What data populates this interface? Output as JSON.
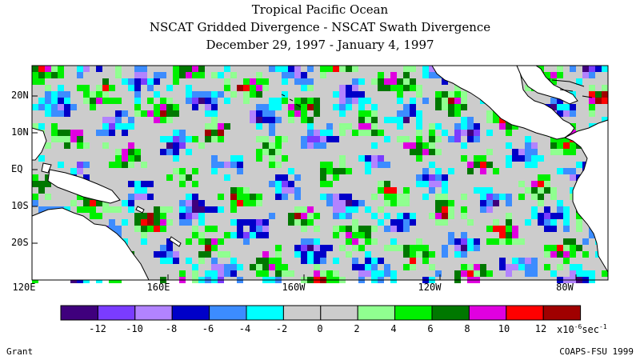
{
  "title": {
    "line1": "Tropical Pacific Ocean",
    "line2": "NSCAT Gridded Divergence - NSCAT Swath Divergence",
    "line3": "December 29, 1997 - January 4, 1997"
  },
  "map": {
    "region": "Tropical Pacific Ocean",
    "lat_range": [
      -30,
      30
    ],
    "lon_range": [
      "120E",
      "70W"
    ],
    "lat_labels": [
      "20N",
      "10N",
      "EQ",
      "10S",
      "20S"
    ],
    "lon_labels": [
      "120E",
      "160E",
      "160W",
      "120W",
      "80W"
    ]
  },
  "colorbar": {
    "ticks": [
      "-12",
      "-10",
      "-8",
      "-6",
      "-4",
      "-2",
      "0",
      "2",
      "4",
      "6",
      "8",
      "10",
      "12"
    ],
    "units": "x10",
    "units_exp": "-6",
    "units_tail": "sec",
    "units_exp2": "-1",
    "colors": [
      "#3f007d",
      "#7a3cff",
      "#b283ff",
      "#0000c8",
      "#3c8cff",
      "#00ffff",
      "#cccccc",
      "#cccccc",
      "#90ff90",
      "#00f000",
      "#007800",
      "#e000e0",
      "#ff0000",
      "#a00000"
    ]
  },
  "footer": {
    "left": "Grant",
    "right": "COAPS-FSU 1999"
  },
  "colors": {
    "land": "#ffffff",
    "neutral_ocean": "#cccccc",
    "coastline": "#000000"
  }
}
